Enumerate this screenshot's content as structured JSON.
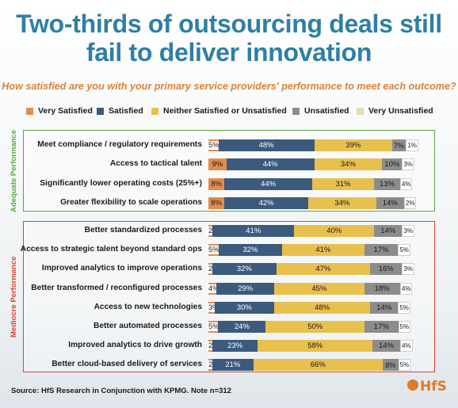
{
  "title_line1": "Two-thirds of outsourcing deals still",
  "title_line2": "fail to deliver innovation",
  "subtitle": "How satisfied are you with your primary service providers' performance to meet each outcome?",
  "source": "Source: HfS Research in Conjunction with KPMG. Note n=312",
  "logo_text": "HfS",
  "colors": {
    "very_satisfied": "#e08d4f",
    "satisfied": "#3b5a7e",
    "neither": "#e8c04e",
    "unsatisfied": "#8c8c8c",
    "very_unsatisfied": "#e6dcb0",
    "adequate_border": "#5aa845",
    "mediocre_border": "#d94434",
    "title": "#2e7fa6"
  },
  "chart_data": {
    "type": "bar",
    "orientation": "horizontal",
    "stacked": true,
    "percent_scale": true,
    "legend_position": "top",
    "series": [
      {
        "name": "Very Satisfied",
        "color": "#e08d4f"
      },
      {
        "name": "Satisfied",
        "color": "#3b5a7e"
      },
      {
        "name": "Neither Satisfied or Unsatisfied",
        "color": "#e8c04e"
      },
      {
        "name": "Unsatisfied",
        "color": "#8c8c8c"
      },
      {
        "name": "Very Unsatisfied",
        "color": "#e6dcb0"
      }
    ],
    "groups": [
      {
        "label": "Adequate Performance",
        "rows": [
          {
            "label": "Meet compliance / regulatory requirements",
            "values": [
              5,
              48,
              39,
              7,
              1
            ]
          },
          {
            "label": "Access to tactical talent",
            "values": [
              9,
              44,
              34,
              10,
              3
            ]
          },
          {
            "label": "Significantly lower operating costs (25%+)",
            "values": [
              8,
              44,
              31,
              13,
              4
            ]
          },
          {
            "label": "Greater flexibility to scale operations",
            "values": [
              8,
              42,
              34,
              14,
              2
            ]
          }
        ]
      },
      {
        "label": "Mediocre Performance",
        "rows": [
          {
            "label": "Better standardized processes",
            "values": [
              2,
              41,
              40,
              14,
              3
            ]
          },
          {
            "label": "Access to strategic talent beyond standard ops",
            "values": [
              5,
              32,
              41,
              17,
              5
            ]
          },
          {
            "label": "Improved analytics to improve operations",
            "values": [
              2,
              32,
              47,
              16,
              3
            ]
          },
          {
            "label": "Better transformed / reconfigured processes",
            "values": [
              4,
              29,
              45,
              18,
              4
            ]
          },
          {
            "label": "Access to new technologies",
            "values": [
              3,
              30,
              48,
              14,
              5
            ]
          },
          {
            "label": "Better automated processes",
            "values": [
              5,
              24,
              50,
              17,
              5
            ]
          },
          {
            "label": "Improved analytics to drive growth",
            "values": [
              2,
              23,
              58,
              14,
              4
            ]
          },
          {
            "label": "Better cloud-based delivery of services",
            "values": [
              2,
              21,
              66,
              8,
              5
            ]
          }
        ]
      }
    ]
  }
}
